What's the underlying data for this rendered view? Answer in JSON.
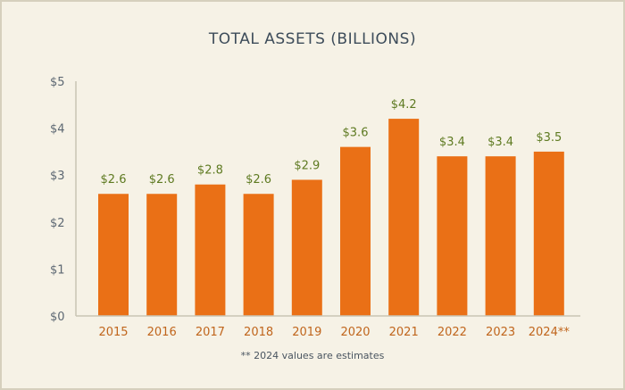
{
  "colors": {
    "background": "#f6f2e6",
    "bar": "#ea7016",
    "title": "#3d4c5a",
    "axis_text": "#5d6873",
    "category_text": "#c0651c",
    "data_label": "#5e7a21",
    "axis_line": "#c9c4b4"
  },
  "footnote": "** 2024 values are estimates",
  "chart_data": {
    "type": "bar",
    "title": "TOTAL ASSETS (BILLIONS)",
    "xlabel": "",
    "ylabel": "",
    "categories": [
      "2015",
      "2016",
      "2017",
      "2018",
      "2019",
      "2020",
      "2021",
      "2022",
      "2023",
      "2024**"
    ],
    "values": [
      2.6,
      2.6,
      2.8,
      2.6,
      2.9,
      3.6,
      4.2,
      3.4,
      3.4,
      3.5
    ],
    "value_labels": [
      "$2.6",
      "$2.6",
      "$2.8",
      "$2.6",
      "$2.9",
      "$3.6",
      "$4.2",
      "$3.4",
      "$3.4",
      "$3.5"
    ],
    "ylim": [
      0,
      5
    ],
    "yticks": [
      0,
      1,
      2,
      3,
      4,
      5
    ],
    "ytick_labels": [
      "$0",
      "$1",
      "$2",
      "$3",
      "$4",
      "$5"
    ],
    "grid": false,
    "legend": "none"
  }
}
